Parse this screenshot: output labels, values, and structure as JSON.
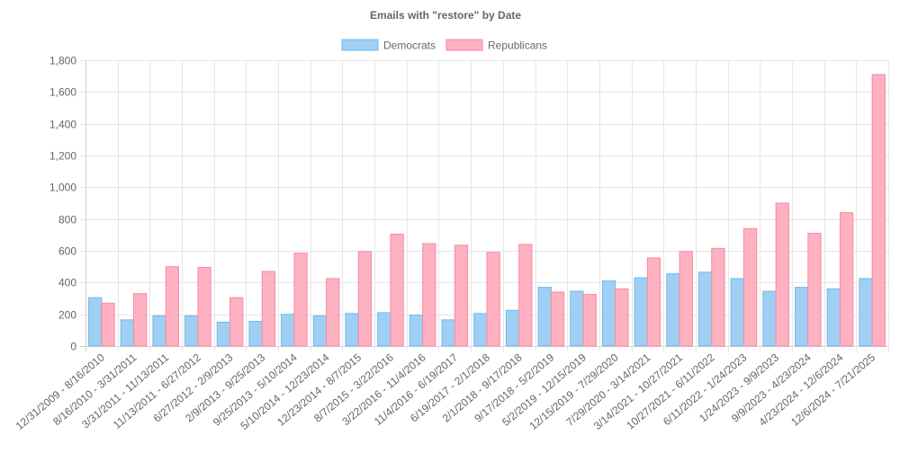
{
  "chart_data": {
    "type": "bar",
    "title": "Emails with \"restore\" by Date",
    "xlabel": "",
    "ylabel": "",
    "ylim": [
      0,
      1800
    ],
    "yticks": [
      0,
      200,
      400,
      600,
      800,
      1000,
      1200,
      1400,
      1600,
      1800
    ],
    "ytick_labels": [
      "0",
      "200",
      "400",
      "600",
      "800",
      "1,000",
      "1,200",
      "1,400",
      "1,600",
      "1,800"
    ],
    "grid": true,
    "legend_position": "top-center",
    "categories": [
      "12/31/2009 - 8/16/2010",
      "8/16/2010 - 3/31/2011",
      "3/31/2011 - 11/13/2011",
      "11/13/2011 - 6/27/2012",
      "6/27/2012 - 2/9/2013",
      "2/9/2013 - 9/25/2013",
      "9/25/2013 - 5/10/2014",
      "5/10/2014 - 12/23/2014",
      "12/23/2014 - 8/7/2015",
      "8/7/2015 - 3/22/2016",
      "3/22/2016 - 11/4/2016",
      "11/4/2016 - 6/19/2017",
      "6/19/2017 - 2/1/2018",
      "2/1/2018 - 9/17/2018",
      "9/17/2018 - 5/2/2019",
      "5/2/2019 - 12/15/2019",
      "12/15/2019 - 7/29/2020",
      "7/29/2020 - 3/14/2021",
      "3/14/2021 - 10/27/2021",
      "10/27/2021 - 6/11/2022",
      "6/11/2022 - 1/24/2023",
      "1/24/2023 - 9/9/2023",
      "9/9/2023 - 4/23/2024",
      "4/23/2024 - 12/6/2024",
      "12/6/2024 - 7/21/2025"
    ],
    "series": [
      {
        "name": "Democrats",
        "fill": "#9fd0f3",
        "stroke": "#6fb8ec",
        "values": [
          305,
          165,
          190,
          190,
          150,
          155,
          200,
          190,
          205,
          210,
          195,
          165,
          205,
          225,
          370,
          345,
          410,
          430,
          455,
          465,
          425,
          345,
          370,
          360,
          425
        ]
      },
      {
        "name": "Republicans",
        "fill": "#fdb1c1",
        "stroke": "#f98aa3",
        "values": [
          270,
          330,
          500,
          495,
          305,
          470,
          585,
          425,
          595,
          705,
          645,
          635,
          590,
          640,
          340,
          325,
          360,
          555,
          595,
          615,
          740,
          900,
          710,
          840,
          1710
        ]
      }
    ]
  }
}
